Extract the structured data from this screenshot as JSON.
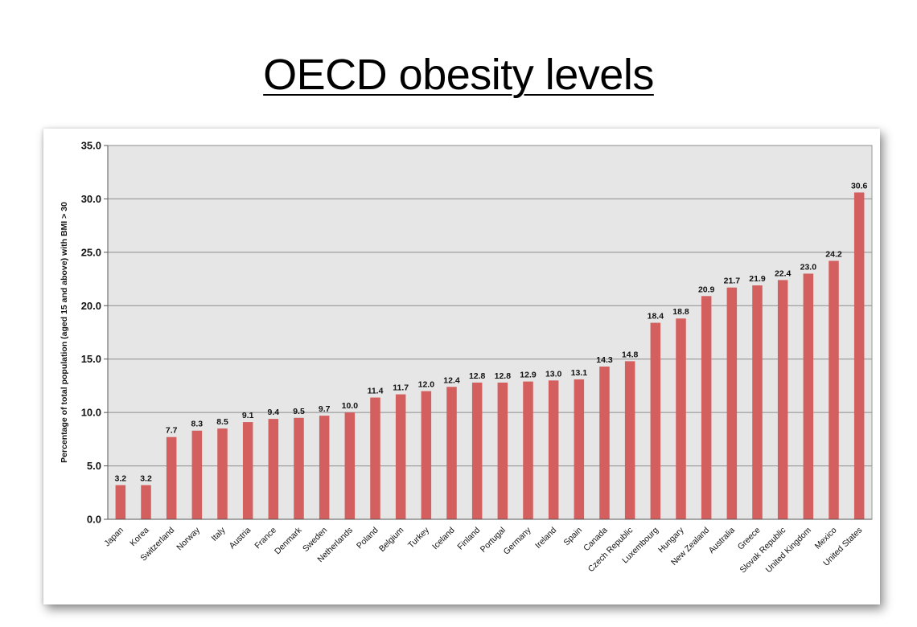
{
  "page": {
    "title": "OECD obesity levels"
  },
  "chart_data": {
    "type": "bar",
    "title": "",
    "xlabel": "",
    "ylabel": "Percentage of total population (aged 15 and above) with BMI > 30",
    "ylim": [
      0,
      35
    ],
    "yticks": [
      "0.0",
      "5.0",
      "10.0",
      "15.0",
      "20.0",
      "25.0",
      "30.0",
      "35.0"
    ],
    "grid": true,
    "legend": "none",
    "bar_color": "#d35f5f",
    "plot_bg": "#e6e6e6",
    "categories": [
      "Japan",
      "Korea",
      "Switzerland",
      "Norway",
      "Italy",
      "Austria",
      "France",
      "Denmark",
      "Sweden",
      "Netherlands",
      "Poland",
      "Belgium",
      "Turkey",
      "Iceland",
      "Finland",
      "Portugal",
      "Germany",
      "Ireland",
      "Spain",
      "Canada",
      "Czech Republic",
      "Luxembourg",
      "Hungary",
      "New Zealand",
      "Australia",
      "Greece",
      "Slovak Republic",
      "United Kingdom",
      "Mexico",
      "United States"
    ],
    "values": [
      3.2,
      3.2,
      7.7,
      8.3,
      8.5,
      9.1,
      9.4,
      9.5,
      9.7,
      10.0,
      11.4,
      11.7,
      12.0,
      12.4,
      12.8,
      12.8,
      12.9,
      13.0,
      13.1,
      14.3,
      14.8,
      18.4,
      18.8,
      20.9,
      21.7,
      21.9,
      22.4,
      23.0,
      24.2,
      30.6
    ],
    "value_labels": [
      "3.2",
      "3.2",
      "7.7",
      "8.3",
      "8.5",
      "9.1",
      "9.4",
      "9.5",
      "9.7",
      "10.0",
      "11.4",
      "11.7",
      "12.0",
      "12.4",
      "12.8",
      "12.8",
      "12.9",
      "13.0",
      "13.1",
      "14.3",
      "14.8",
      "18.4",
      "18.8",
      "20.9",
      "21.7",
      "21.9",
      "22.4",
      "23.0",
      "24.2",
      "30.6"
    ]
  }
}
